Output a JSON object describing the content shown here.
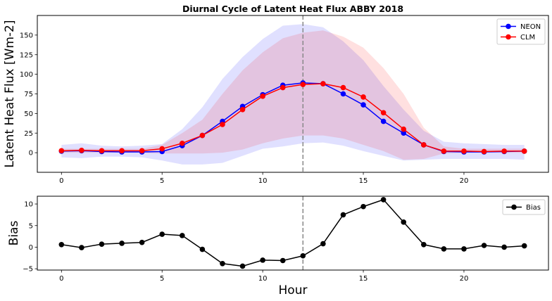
{
  "chart_data": [
    {
      "type": "line",
      "title": "Diurnal Cycle of Latent Heat Flux ABBY 2018",
      "xlabel": "",
      "ylabel": "Latent Heat Flux [Wm-2]",
      "xlim": [
        -1.2,
        24.2
      ],
      "ylim": [
        -25,
        175
      ],
      "xticks": [
        0,
        5,
        10,
        15,
        20
      ],
      "yticks": [
        0,
        25,
        50,
        75,
        100,
        125,
        150
      ],
      "vline": 12,
      "legend_position": "top-right",
      "x": [
        0,
        1,
        2,
        3,
        4,
        5,
        6,
        7,
        8,
        9,
        10,
        11,
        12,
        13,
        14,
        15,
        16,
        17,
        18,
        19,
        20,
        21,
        22,
        23
      ],
      "series": [
        {
          "name": "NEON",
          "color": "#0000ff",
          "values": [
            2,
            2.5,
            1.5,
            1,
            1,
            1.5,
            9,
            22,
            40,
            59,
            74,
            86,
            89,
            88,
            75,
            61,
            40,
            25,
            10,
            1.5,
            1,
            1,
            1.5,
            2
          ],
          "band_upper": [
            10,
            12,
            9,
            8,
            9,
            11,
            30,
            58,
            94,
            122,
            145,
            162,
            164,
            160,
            142,
            118,
            85,
            55,
            28,
            14,
            12,
            11,
            10,
            10
          ],
          "band_lower": [
            -6,
            -7,
            -5,
            -5,
            -6,
            -10,
            -15,
            -15,
            -13,
            -4,
            5,
            8,
            12,
            13,
            9,
            2,
            -4,
            -10,
            -9,
            -8,
            -8,
            -8,
            -8,
            -9
          ]
        },
        {
          "name": "CLM",
          "color": "#ff0000",
          "values": [
            2.5,
            3,
            2.5,
            2.5,
            2.5,
            5,
            12,
            22,
            36,
            55,
            72,
            83,
            87,
            88,
            83,
            71,
            51,
            30,
            10,
            2,
            2,
            1.5,
            2,
            2
          ],
          "band_upper": [
            5,
            5,
            5,
            5,
            5,
            10,
            25,
            42,
            75,
            105,
            128,
            146,
            153,
            156,
            148,
            134,
            108,
            75,
            32,
            8,
            5,
            5,
            5,
            5
          ],
          "band_lower": [
            0,
            0,
            0,
            0,
            0,
            -1,
            -1,
            -1,
            0,
            4,
            12,
            18,
            22,
            22,
            18,
            10,
            2,
            -9,
            -8,
            -1,
            0,
            0,
            0,
            0
          ]
        }
      ]
    },
    {
      "type": "line",
      "title": "",
      "xlabel": "Hour",
      "ylabel": "Bias",
      "xlim": [
        -1.2,
        24.2
      ],
      "ylim": [
        -5.3,
        11.8
      ],
      "xticks": [
        0,
        5,
        10,
        15,
        20
      ],
      "yticks": [
        -5,
        0,
        5,
        10
      ],
      "vline": 12,
      "legend_position": "top-right",
      "x": [
        0,
        1,
        2,
        3,
        4,
        5,
        6,
        7,
        8,
        9,
        10,
        11,
        12,
        13,
        14,
        15,
        16,
        17,
        18,
        19,
        20,
        21,
        22,
        23
      ],
      "series": [
        {
          "name": "Bias",
          "color": "#000000",
          "values": [
            0.6,
            -0.1,
            0.7,
            0.9,
            1.1,
            3.0,
            2.7,
            -0.5,
            -3.8,
            -4.4,
            -3.0,
            -3.1,
            -2.0,
            0.8,
            7.5,
            9.4,
            11.0,
            5.8,
            0.6,
            -0.4,
            -0.4,
            0.4,
            0.0,
            0.3
          ]
        }
      ]
    }
  ]
}
